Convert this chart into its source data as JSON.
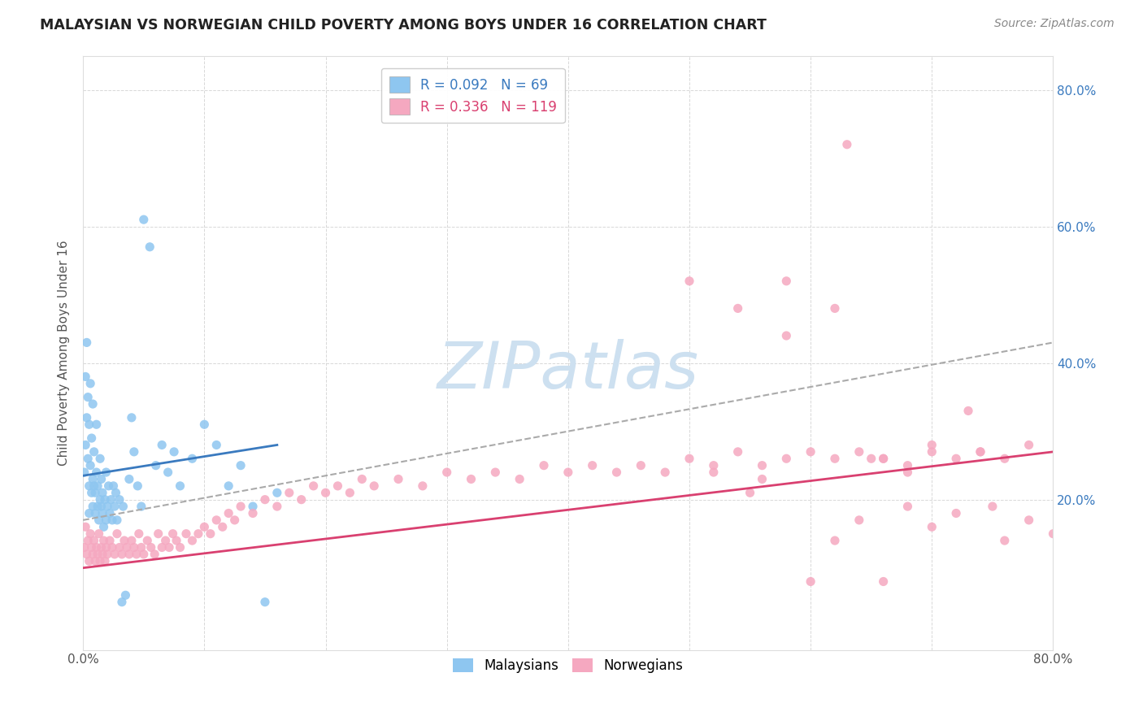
{
  "title": "MALAYSIAN VS NORWEGIAN CHILD POVERTY AMONG BOYS UNDER 16 CORRELATION CHART",
  "source": "Source: ZipAtlas.com",
  "ylabel": "Child Poverty Among Boys Under 16",
  "ytick_labels": [
    "20.0%",
    "40.0%",
    "60.0%",
    "80.0%"
  ],
  "ytick_values": [
    0.2,
    0.4,
    0.6,
    0.8
  ],
  "xlim": [
    0.0,
    0.8
  ],
  "ylim": [
    -0.02,
    0.85
  ],
  "malaysian_R": 0.092,
  "malaysian_N": 69,
  "norwegian_R": 0.336,
  "norwegian_N": 119,
  "malaysian_color": "#8ec6f0",
  "norwegian_color": "#f5a8c0",
  "malaysian_line_color": "#3a7abf",
  "norwegian_line_color": "#d94070",
  "trendline_dashed_color": "#aaaaaa",
  "background_color": "#ffffff",
  "grid_color": "#d8d8d8",
  "watermark_text": "ZIPatlas",
  "watermark_color": "#cde0f0",
  "legend_labels": [
    "Malaysians",
    "Norwegians"
  ],
  "mal_x": [
    0.001,
    0.002,
    0.002,
    0.003,
    0.003,
    0.004,
    0.004,
    0.005,
    0.005,
    0.005,
    0.006,
    0.006,
    0.007,
    0.007,
    0.008,
    0.008,
    0.008,
    0.009,
    0.009,
    0.01,
    0.01,
    0.011,
    0.011,
    0.012,
    0.012,
    0.013,
    0.014,
    0.014,
    0.015,
    0.015,
    0.016,
    0.016,
    0.017,
    0.018,
    0.019,
    0.019,
    0.02,
    0.021,
    0.022,
    0.023,
    0.024,
    0.025,
    0.026,
    0.027,
    0.028,
    0.03,
    0.032,
    0.033,
    0.035,
    0.038,
    0.04,
    0.042,
    0.045,
    0.048,
    0.05,
    0.055,
    0.06,
    0.065,
    0.07,
    0.075,
    0.08,
    0.09,
    0.1,
    0.11,
    0.12,
    0.13,
    0.14,
    0.15,
    0.16
  ],
  "mal_y": [
    0.24,
    0.38,
    0.28,
    0.43,
    0.32,
    0.35,
    0.26,
    0.22,
    0.31,
    0.18,
    0.25,
    0.37,
    0.29,
    0.21,
    0.23,
    0.34,
    0.19,
    0.27,
    0.22,
    0.21,
    0.18,
    0.24,
    0.31,
    0.19,
    0.22,
    0.17,
    0.2,
    0.26,
    0.19,
    0.23,
    0.18,
    0.21,
    0.16,
    0.2,
    0.17,
    0.24,
    0.19,
    0.22,
    0.18,
    0.2,
    0.17,
    0.22,
    0.19,
    0.21,
    0.17,
    0.2,
    0.05,
    0.19,
    0.06,
    0.23,
    0.32,
    0.27,
    0.22,
    0.19,
    0.61,
    0.57,
    0.25,
    0.28,
    0.24,
    0.27,
    0.22,
    0.26,
    0.31,
    0.28,
    0.22,
    0.25,
    0.19,
    0.05,
    0.21
  ],
  "nor_x": [
    0.001,
    0.002,
    0.003,
    0.004,
    0.005,
    0.006,
    0.007,
    0.008,
    0.009,
    0.01,
    0.011,
    0.012,
    0.013,
    0.014,
    0.015,
    0.016,
    0.017,
    0.018,
    0.019,
    0.02,
    0.022,
    0.024,
    0.026,
    0.028,
    0.03,
    0.032,
    0.034,
    0.036,
    0.038,
    0.04,
    0.042,
    0.044,
    0.046,
    0.048,
    0.05,
    0.053,
    0.056,
    0.059,
    0.062,
    0.065,
    0.068,
    0.071,
    0.074,
    0.077,
    0.08,
    0.085,
    0.09,
    0.095,
    0.1,
    0.105,
    0.11,
    0.115,
    0.12,
    0.125,
    0.13,
    0.14,
    0.15,
    0.16,
    0.17,
    0.18,
    0.19,
    0.2,
    0.21,
    0.22,
    0.23,
    0.24,
    0.26,
    0.28,
    0.3,
    0.32,
    0.34,
    0.36,
    0.38,
    0.4,
    0.42,
    0.44,
    0.46,
    0.48,
    0.5,
    0.52,
    0.54,
    0.56,
    0.58,
    0.6,
    0.62,
    0.64,
    0.66,
    0.68,
    0.7,
    0.72,
    0.74,
    0.76,
    0.78,
    0.5,
    0.52,
    0.54,
    0.56,
    0.58,
    0.6,
    0.63,
    0.65,
    0.68,
    0.7,
    0.73,
    0.75,
    0.62,
    0.64,
    0.66,
    0.68,
    0.7,
    0.72,
    0.74,
    0.76,
    0.78,
    0.8,
    0.55,
    0.58,
    0.62,
    0.66
  ],
  "nor_y": [
    0.13,
    0.16,
    0.12,
    0.14,
    0.11,
    0.15,
    0.13,
    0.12,
    0.14,
    0.11,
    0.13,
    0.12,
    0.15,
    0.11,
    0.13,
    0.12,
    0.14,
    0.11,
    0.13,
    0.12,
    0.14,
    0.13,
    0.12,
    0.15,
    0.13,
    0.12,
    0.14,
    0.13,
    0.12,
    0.14,
    0.13,
    0.12,
    0.15,
    0.13,
    0.12,
    0.14,
    0.13,
    0.12,
    0.15,
    0.13,
    0.14,
    0.13,
    0.15,
    0.14,
    0.13,
    0.15,
    0.14,
    0.15,
    0.16,
    0.15,
    0.17,
    0.16,
    0.18,
    0.17,
    0.19,
    0.18,
    0.2,
    0.19,
    0.21,
    0.2,
    0.22,
    0.21,
    0.22,
    0.21,
    0.23,
    0.22,
    0.23,
    0.22,
    0.24,
    0.23,
    0.24,
    0.23,
    0.25,
    0.24,
    0.25,
    0.24,
    0.25,
    0.24,
    0.26,
    0.25,
    0.27,
    0.25,
    0.26,
    0.27,
    0.26,
    0.27,
    0.26,
    0.25,
    0.27,
    0.26,
    0.27,
    0.26,
    0.28,
    0.52,
    0.24,
    0.48,
    0.23,
    0.44,
    0.08,
    0.72,
    0.26,
    0.19,
    0.16,
    0.33,
    0.19,
    0.14,
    0.17,
    0.08,
    0.24,
    0.28,
    0.18,
    0.27,
    0.14,
    0.17,
    0.15,
    0.21,
    0.52,
    0.48,
    0.26
  ]
}
